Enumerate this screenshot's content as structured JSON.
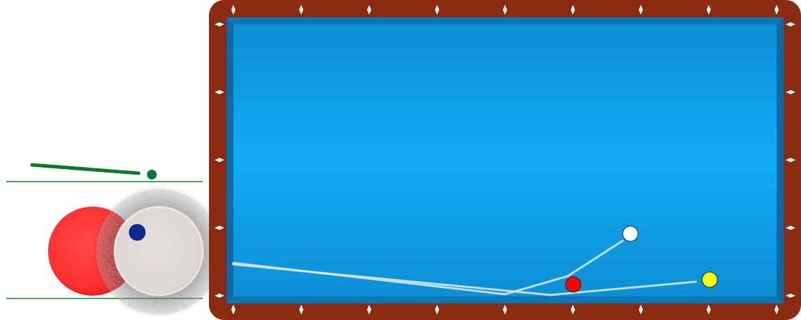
{
  "app": {
    "title": ""
  },
  "colors": {
    "rail": "#8b2a12",
    "felt_center": "#12aaf8",
    "felt_edge": "#0c8fd4",
    "cushion": "#0a6fae",
    "diamond": "#ffffff",
    "cue_stick": "#0a7a2a",
    "aim_dot": "#0a7a2a",
    "guide_line": "#138a2a",
    "object_ball_red": "#ff3333",
    "cue_ball": "#e3dcd7",
    "spin_dot": "#0b2a8f",
    "path_line": "#d8e4ec",
    "ball_white": "#ffffff",
    "ball_red": "#ff0000",
    "ball_yellow": "#ffff00"
  },
  "cue_panel": {
    "cue_tip_icon": "cue-stick-icon",
    "spin_indicator": "spin-dot-icon",
    "hit_preview": "contact-preview"
  },
  "table": {
    "diamonds_top": 9,
    "diamonds_bottom": 9,
    "diamonds_side": 4,
    "balls": [
      {
        "name": "white-ball",
        "color": "white"
      },
      {
        "name": "red-ball",
        "color": "red"
      },
      {
        "name": "yellow-ball",
        "color": "yellow"
      }
    ]
  }
}
